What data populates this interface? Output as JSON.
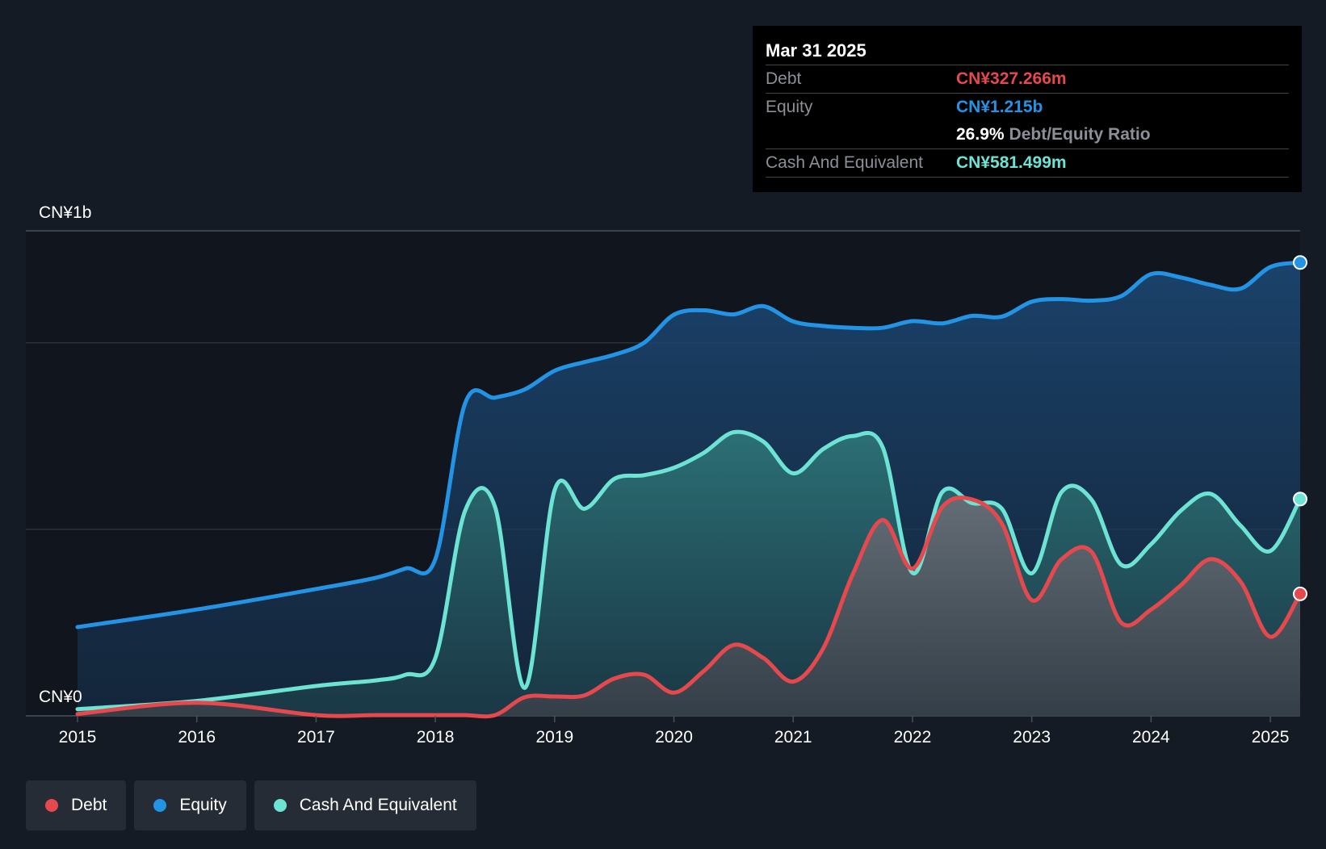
{
  "tooltip": {
    "date": "Mar 31 2025",
    "debt_label": "Debt",
    "debt_value": "CN¥327.266m",
    "equity_label": "Equity",
    "equity_value": "CN¥1.215b",
    "ratio_value": "26.9%",
    "ratio_label": "Debt/Equity Ratio",
    "cash_label": "Cash And Equivalent",
    "cash_value": "CN¥581.499m"
  },
  "legend": [
    {
      "label": "Debt",
      "color": "#e5484d"
    },
    {
      "label": "Equity",
      "color": "#2394e5"
    },
    {
      "label": "Cash And Equivalent",
      "color": "#6de3d4"
    }
  ],
  "chart_data": {
    "type": "area",
    "title": "",
    "y_unit": "CN¥ millions",
    "ylim": [
      0,
      1300
    ],
    "y_tick_labels": [
      {
        "value": 1300,
        "label": "CN¥1b"
      },
      {
        "value": 0,
        "label": "CN¥0"
      }
    ],
    "gridlines": [
      1000,
      500
    ],
    "xlim": [
      2015,
      2025.25
    ],
    "x_ticks": [
      2015,
      2016,
      2017,
      2018,
      2019,
      2020,
      2021,
      2022,
      2023,
      2024,
      2025
    ],
    "x_tick_labels": [
      "2015",
      "2016",
      "2017",
      "2018",
      "2019",
      "2020",
      "2021",
      "2022",
      "2023",
      "2024",
      "2025"
    ],
    "series": [
      {
        "name": "Equity",
        "color": "#2394e5",
        "x": [
          2015,
          2016,
          2017,
          2017.5,
          2017.75,
          2018,
          2018.25,
          2018.5,
          2018.75,
          2019,
          2019.25,
          2019.5,
          2019.75,
          2020,
          2020.25,
          2020.5,
          2020.75,
          2021,
          2021.25,
          2021.5,
          2021.75,
          2022,
          2022.25,
          2022.5,
          2022.75,
          2023,
          2023.25,
          2023.5,
          2023.75,
          2024,
          2024.25,
          2024.5,
          2024.75,
          2025,
          2025.25
        ],
        "values": [
          238,
          285,
          340,
          370,
          395,
          420,
          838,
          853,
          875,
          925,
          948,
          968,
          1000,
          1075,
          1087,
          1076,
          1098,
          1057,
          1045,
          1040,
          1040,
          1058,
          1052,
          1072,
          1070,
          1110,
          1117,
          1113,
          1125,
          1184,
          1175,
          1155,
          1145,
          1203,
          1215
        ]
      },
      {
        "name": "Cash And Equivalent",
        "color": "#6de3d4",
        "x": [
          2015,
          2016,
          2017,
          2017.5,
          2017.75,
          2018,
          2018.25,
          2018.5,
          2018.75,
          2019,
          2019.25,
          2019.5,
          2019.75,
          2020,
          2020.25,
          2020.5,
          2020.75,
          2021,
          2021.25,
          2021.5,
          2021.75,
          2022,
          2022.25,
          2022.5,
          2022.75,
          2023,
          2023.25,
          2023.5,
          2023.75,
          2024,
          2024.25,
          2024.5,
          2024.75,
          2025,
          2025.25
        ],
        "values": [
          18,
          40,
          80,
          95,
          110,
          155,
          550,
          560,
          75,
          605,
          555,
          635,
          645,
          665,
          705,
          760,
          735,
          650,
          715,
          750,
          720,
          383,
          600,
          570,
          555,
          382,
          600,
          580,
          405,
          460,
          550,
          595,
          510,
          442,
          581
        ]
      },
      {
        "name": "Debt",
        "color": "#e5484d",
        "x": [
          2015,
          2016,
          2017,
          2017.5,
          2018,
          2018.25,
          2018.5,
          2018.75,
          2019,
          2019.25,
          2019.5,
          2019.75,
          2020,
          2020.25,
          2020.5,
          2020.75,
          2021,
          2021.25,
          2021.5,
          2021.75,
          2022,
          2022.25,
          2022.5,
          2022.75,
          2023,
          2023.25,
          2023.5,
          2023.75,
          2024,
          2024.25,
          2024.5,
          2024.75,
          2025,
          2025.25
        ],
        "values": [
          5,
          35,
          2,
          2,
          2,
          2,
          2,
          50,
          52,
          55,
          100,
          110,
          62,
          120,
          190,
          155,
          92,
          180,
          380,
          525,
          395,
          560,
          580,
          515,
          310,
          420,
          440,
          250,
          285,
          350,
          420,
          360,
          212,
          327
        ]
      }
    ]
  }
}
